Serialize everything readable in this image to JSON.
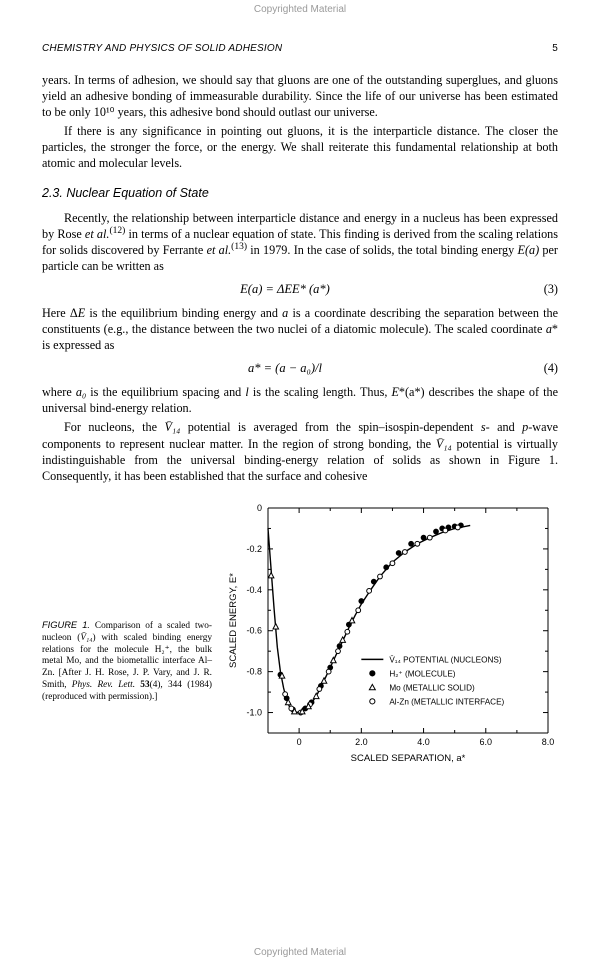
{
  "copyright": "Copyrighted Material",
  "header": {
    "title": "CHEMISTRY AND PHYSICS OF SOLID ADHESION",
    "page": "5"
  },
  "para1": "years. In terms of adhesion, we should say that gluons are one of the outstanding super­glues, and gluons yield an adhesive bonding of immeasurable durability. Since the life of our universe has been estimated to be only 10¹⁰ years, this adhesive bond should outlast our universe.",
  "para2": "If there is any significance in pointing out gluons, it is the interparticle distance. The closer the particles, the stronger the force, or the energy. We shall reiterate this fundamen­tal relationship at both atomic and molecular levels.",
  "section": "2.3.  Nuclear Equation of State",
  "para3a": "Recently, the relationship between interparticle distance and energy in a nucleus has been expressed by Rose ",
  "para3b": " in terms of a nuclear equation of state. This finding is derived from the scaling relations for solids discovered by Ferrante ",
  "para3c": " in 1979. In the case of solids, the total binding energy ",
  "para3d": " per particle can be written as",
  "etal": "et al.",
  "ref12": "(12)",
  "ref13": "(13)",
  "Ea": "E(a)",
  "eq3": "E(a)  =  ΔEE*  (a*)",
  "eq3num": "(3)",
  "para4a": "Here Δ",
  "para4b": " is the equilibrium binding energy and ",
  "para4c": " is a coordinate describing the separation between the constituents (e.g., the distance between the two nuclei of a diatomic mole­cule). The scaled coordinate ",
  "para4d": "* is expressed as",
  "E": "E",
  "a": "a",
  "eq4": "a*  =  (a − a₀)/l",
  "eq4num": "(4)",
  "para5a": "where ",
  "para5b": " is the equilibrium spacing and ",
  "para5c": " is the scaling length. Thus, ",
  "para5d": "*(a*) describes the shape of the universal bind-energy relation.",
  "a0": "a₀",
  "l": "l",
  "para6a": "For nucleons, the ",
  "para6b": " potential is averaged from the spin–isospin-dependent ",
  "para6c": "- and ",
  "para6d": "-wave components to represent nuclear matter. In the region of strong bonding, the ",
  "para6e": " potential is virtually indistinguishable from the universal binding-energy relation of solids as shown in Figure 1. Consequently, it has been established that the surface and cohesive",
  "V14": "V̄₁₄",
  "s": "s",
  "p": "p",
  "figcaption_label": "FIGURE 1.",
  "figcaption_a": " Comparison of a scaled two-nucleon (",
  "figcaption_b": ") with scaled binding energy relations for the molecule H₂⁺, the bulk metal Mo, and the biometallic interface Al–Zn. [After J. H. Rose, J. P. Vary, and J. R. Smith, ",
  "figcaption_journal": "Phys. Rev. Lett.",
  "figcaption_c": " ",
  "figcaption_vol": "53",
  "figcaption_d": "(4), 344 (1984) (reproduced with permission).]",
  "chart": {
    "type": "line+scatter",
    "xlim": [
      -1,
      8
    ],
    "ylim": [
      -1.1,
      0
    ],
    "xticks": [
      0,
      2.0,
      4.0,
      6.0,
      8.0
    ],
    "yticks": [
      0,
      -0.2,
      -0.4,
      -0.6,
      -0.8,
      -1.0
    ],
    "xlabel": "SCALED SEPARATION, a*",
    "ylabel": "SCALED ENERGY, E*",
    "background_color": "#ffffff",
    "axis_color": "#000000",
    "curve": [
      [
        -1.0,
        -0.1
      ],
      [
        -0.9,
        -0.3
      ],
      [
        -0.8,
        -0.5
      ],
      [
        -0.7,
        -0.68
      ],
      [
        -0.6,
        -0.8
      ],
      [
        -0.5,
        -0.88
      ],
      [
        -0.4,
        -0.94
      ],
      [
        -0.3,
        -0.975
      ],
      [
        -0.2,
        -0.99
      ],
      [
        -0.1,
        -0.998
      ],
      [
        0.0,
        -1.0
      ],
      [
        0.2,
        -0.985
      ],
      [
        0.4,
        -0.955
      ],
      [
        0.6,
        -0.905
      ],
      [
        0.8,
        -0.845
      ],
      [
        1.0,
        -0.78
      ],
      [
        1.2,
        -0.715
      ],
      [
        1.4,
        -0.65
      ],
      [
        1.6,
        -0.585
      ],
      [
        1.8,
        -0.525
      ],
      [
        2.0,
        -0.47
      ],
      [
        2.3,
        -0.4
      ],
      [
        2.6,
        -0.335
      ],
      [
        3.0,
        -0.265
      ],
      [
        3.4,
        -0.215
      ],
      [
        3.8,
        -0.175
      ],
      [
        4.2,
        -0.145
      ],
      [
        4.6,
        -0.12
      ],
      [
        5.0,
        -0.1
      ],
      [
        5.5,
        -0.085
      ]
    ],
    "h2_points": [
      [
        -0.6,
        -0.815
      ],
      [
        -0.4,
        -0.93
      ],
      [
        -0.2,
        -0.985
      ],
      [
        0.2,
        -0.98
      ],
      [
        0.4,
        -0.95
      ],
      [
        0.7,
        -0.87
      ],
      [
        1.0,
        -0.78
      ],
      [
        1.3,
        -0.675
      ],
      [
        1.6,
        -0.57
      ],
      [
        2.0,
        -0.455
      ],
      [
        2.4,
        -0.36
      ],
      [
        2.8,
        -0.29
      ],
      [
        3.2,
        -0.22
      ],
      [
        3.6,
        -0.175
      ],
      [
        4.0,
        -0.145
      ],
      [
        4.4,
        -0.115
      ],
      [
        4.8,
        -0.095
      ],
      [
        5.2,
        -0.085
      ],
      [
        5.0,
        -0.09
      ],
      [
        4.6,
        -0.1
      ]
    ],
    "mo_points": [
      [
        -0.9,
        -0.33
      ],
      [
        -0.75,
        -0.58
      ],
      [
        -0.55,
        -0.82
      ],
      [
        -0.35,
        -0.95
      ],
      [
        -0.15,
        -0.995
      ],
      [
        0.1,
        -0.995
      ],
      [
        0.3,
        -0.97
      ],
      [
        0.55,
        -0.92
      ],
      [
        0.8,
        -0.845
      ],
      [
        1.1,
        -0.745
      ],
      [
        1.4,
        -0.645
      ],
      [
        1.7,
        -0.55
      ]
    ],
    "alzn_points": [
      [
        -0.45,
        -0.91
      ],
      [
        -0.25,
        -0.98
      ],
      [
        0.05,
        -1.0
      ],
      [
        0.35,
        -0.96
      ],
      [
        0.65,
        -0.885
      ],
      [
        0.95,
        -0.8
      ],
      [
        1.25,
        -0.7
      ],
      [
        1.55,
        -0.605
      ],
      [
        1.9,
        -0.5
      ],
      [
        2.25,
        -0.405
      ],
      [
        2.6,
        -0.335
      ],
      [
        3.0,
        -0.27
      ],
      [
        3.4,
        -0.215
      ],
      [
        3.8,
        -0.175
      ],
      [
        4.2,
        -0.145
      ],
      [
        4.7,
        -0.11
      ],
      [
        5.1,
        -0.095
      ]
    ],
    "legend": {
      "v14": "V̄₁₄  POTENTIAL (NUCLEONS)",
      "h2": "H₂⁺  (MOLECULE)",
      "mo": "Mo  (METALLIC SOLID)",
      "alzn": "Al-Zn  (METALLIC INTERFACE)"
    }
  }
}
